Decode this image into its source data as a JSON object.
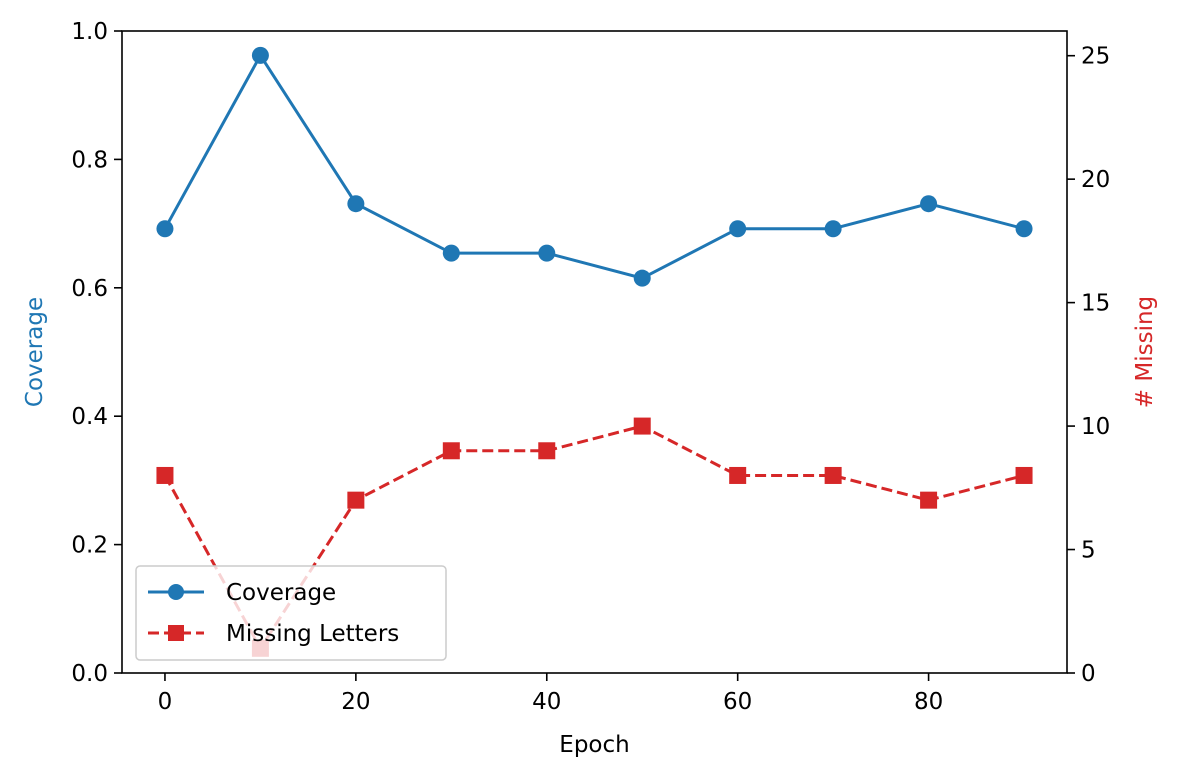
{
  "chart_data": {
    "type": "line",
    "title": "",
    "xlabel": "Epoch",
    "ylabel_left": "Coverage",
    "ylabel_right": "# Missing",
    "x": [
      0,
      10,
      20,
      30,
      40,
      50,
      60,
      70,
      80,
      90
    ],
    "xlim": [
      -4.5,
      94.5
    ],
    "ylim_left": [
      0.0,
      1.0
    ],
    "ylim_right": [
      0,
      26
    ],
    "x_ticks": [
      "0",
      "20",
      "40",
      "60",
      "80"
    ],
    "x_tick_values": [
      0,
      20,
      40,
      60,
      80
    ],
    "y_left_ticks": [
      "0.0",
      "0.2",
      "0.4",
      "0.6",
      "0.8",
      "1.0"
    ],
    "y_left_tick_values": [
      0.0,
      0.2,
      0.4,
      0.6,
      0.8,
      1.0
    ],
    "y_right_ticks": [
      "0",
      "5",
      "10",
      "15",
      "20",
      "25"
    ],
    "y_right_tick_values": [
      0,
      5,
      10,
      15,
      20,
      25
    ],
    "grid": false,
    "legend_position": "lower-left",
    "series": [
      {
        "name": "Coverage",
        "axis": "left",
        "color": "#1f77b4",
        "marker": "circle",
        "linestyle": "solid",
        "values": [
          0.692,
          0.962,
          0.731,
          0.654,
          0.654,
          0.615,
          0.692,
          0.692,
          0.731,
          0.692
        ]
      },
      {
        "name": "Missing Letters",
        "axis": "right",
        "color": "#d62728",
        "marker": "square",
        "linestyle": "dashed",
        "values": [
          8,
          1,
          7,
          9,
          9,
          10,
          8,
          8,
          7,
          8
        ]
      }
    ]
  }
}
